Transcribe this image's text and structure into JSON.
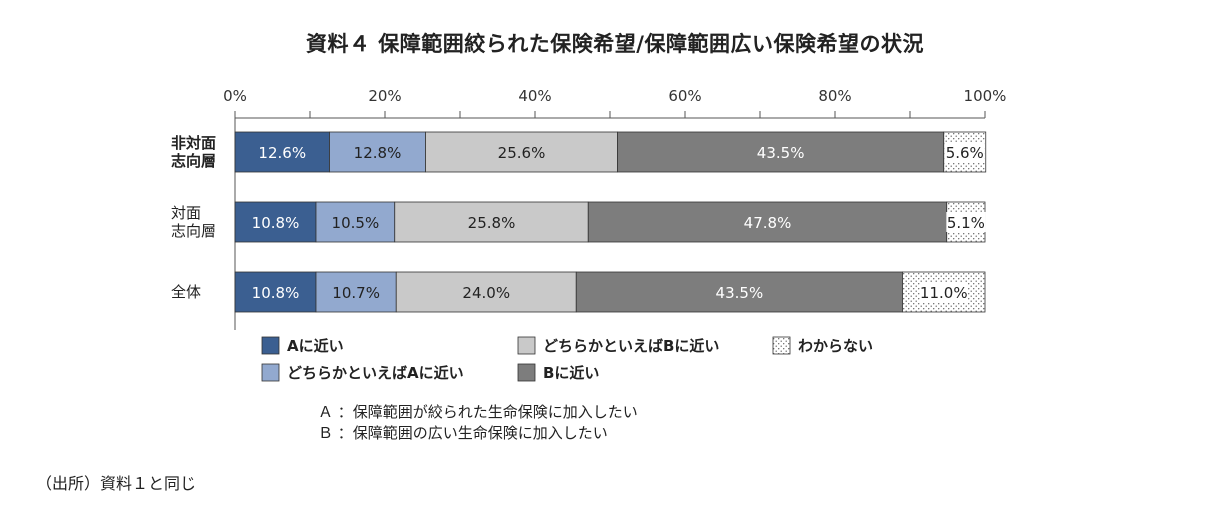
{
  "title": "資料４ 保障範囲絞られた保険希望/保障範囲広い保険希望の状況",
  "chart_data": {
    "type": "bar",
    "orientation": "horizontal",
    "stacked": true,
    "percent_axis": true,
    "xlim": [
      0,
      100
    ],
    "xticks": [
      "0%",
      "20%",
      "40%",
      "60%",
      "80%",
      "100%"
    ],
    "categories": [
      [
        "非対面",
        "志向層"
      ],
      [
        "対面",
        "志向層"
      ],
      [
        "全体"
      ]
    ],
    "category_bold": [
      true,
      false,
      false
    ],
    "series": [
      {
        "name": "Aに近い",
        "values": [
          12.6,
          10.8,
          10.8
        ],
        "labels": [
          "12.6%",
          "10.8%",
          "10.8%"
        ],
        "color": "#3b5f91",
        "pattern": "solid",
        "label_color": "#ffffff"
      },
      {
        "name": "どちらかといえばAに近い",
        "values": [
          12.8,
          10.5,
          10.7
        ],
        "labels": [
          "12.8%",
          "10.5%",
          "10.7%"
        ],
        "color": "#92a9cf",
        "pattern": "solid",
        "label_color": "#222222"
      },
      {
        "name": "どちらかといえばBに近い",
        "values": [
          25.6,
          25.8,
          24.0
        ],
        "labels": [
          "25.6%",
          "25.8%",
          "24.0%"
        ],
        "color": "#c9c9c9",
        "pattern": "solid",
        "label_color": "#222222"
      },
      {
        "name": "Bに近い",
        "values": [
          43.5,
          47.8,
          43.5
        ],
        "labels": [
          "43.5%",
          "47.8%",
          "43.5%"
        ],
        "color": "#7d7d7d",
        "pattern": "solid",
        "label_color": "#ffffff"
      },
      {
        "name": "わからない",
        "values": [
          5.6,
          5.1,
          11.0
        ],
        "labels": [
          "5.6%",
          "5.1%",
          "11.0%"
        ],
        "color": "#ffffff",
        "pattern": "dots",
        "label_color": "#222222"
      }
    ],
    "legend_rows": [
      [
        "Aに近い",
        "どちらかといえばBに近い",
        "わからない"
      ],
      [
        "どちらかといえばAに近い",
        "Bに近い"
      ]
    ],
    "legend_placement": "bottom",
    "grid": false
  },
  "notes": [
    "Ａ ：保障範囲が絞られた生命保険に加入したい",
    "Ｂ ：保障範囲の広い生命保険に加入したい"
  ],
  "source": "（出所）資料１と同じ"
}
